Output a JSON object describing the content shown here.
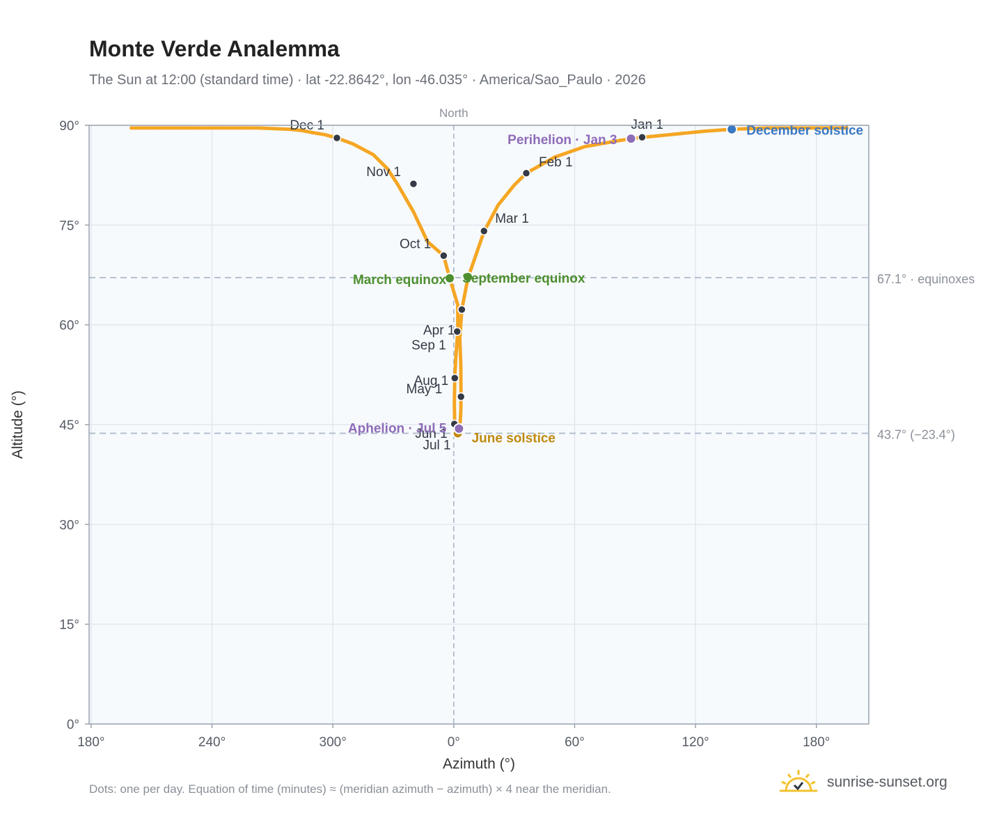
{
  "title": "Monte Verde Analemma",
  "subtitle": "The Sun at 12:00 (standard time) · lat -22.8642°, lon -46.035° · America/Sao_Paulo · 2026",
  "footnote": "Dots: one per day. Equation of time (minutes) ≈ (meridian azimuth − azimuth) × 4 near the meridian.",
  "brand": {
    "name": "sunrise-sunset.org",
    "icon": "sun-logo-icon"
  },
  "colors": {
    "path": "#f5a623",
    "month_marker": "#333a45",
    "equinox": "#4e8f2f",
    "june_solstice": "#c08a10",
    "december_solstice": "#3a78c3",
    "apsis": "#8e6cb8",
    "reference_line": "#aebccb",
    "plot_bg": "#f7fafd",
    "grid": "#e2e7ee"
  },
  "chart_data": {
    "type": "scatter",
    "title": "Monte Verde Analemma",
    "subtitle": "The Sun at 12:00 (standard time) · lat -22.8642°, lon -46.035° · America/Sao_Paulo · 2026",
    "xlabel": "Azimuth (°)",
    "ylabel": "Altitude (°)",
    "x_ticks": [
      "180°",
      "240°",
      "300°",
      "0°",
      "60°",
      "120°",
      "180°"
    ],
    "y_ticks": [
      "0°",
      "15°",
      "30°",
      "45°",
      "60°",
      "75°",
      "90°"
    ],
    "xlim": [
      -181,
      206
    ],
    "ylim": [
      0,
      90
    ],
    "north_label": "North",
    "grid": true,
    "reference_lines": [
      {
        "altitude": 67.1,
        "label": "67.1° · equinoxes"
      },
      {
        "altitude": 43.7,
        "label": "43.7° (−23.4°)"
      }
    ],
    "path_points": [
      [
        -160,
        89.6
      ],
      [
        -145,
        89.6
      ],
      [
        -130,
        89.6
      ],
      [
        -117,
        89.6
      ],
      [
        -106,
        89.6
      ],
      [
        -97,
        89.6
      ],
      [
        -89,
        89.5
      ],
      [
        -81,
        89.4
      ],
      [
        -75,
        89.2
      ],
      [
        -70,
        88.9
      ],
      [
        -64,
        88.6
      ],
      [
        -58,
        88.1
      ],
      [
        -50,
        87.2
      ],
      [
        -40,
        85.6
      ],
      [
        -33,
        83.5
      ],
      [
        -28,
        81.2
      ],
      [
        -20,
        77.0
      ],
      [
        -13,
        72.5
      ],
      [
        -5,
        70.4
      ],
      [
        -2,
        67.0
      ],
      [
        2,
        63.0
      ],
      [
        2,
        59.0
      ],
      [
        1,
        55.0
      ],
      [
        0.5,
        52.0
      ],
      [
        0.3,
        48.0
      ],
      [
        0.5,
        45.0
      ],
      [
        2,
        43.7
      ],
      [
        3,
        44.5
      ],
      [
        3.5,
        47.0
      ],
      [
        3.6,
        49.2
      ],
      [
        3.5,
        54.0
      ],
      [
        3,
        58.0
      ],
      [
        4,
        62.3
      ],
      [
        7,
        67.0
      ],
      [
        15,
        74.0
      ],
      [
        22,
        78.0
      ],
      [
        30,
        81.0
      ],
      [
        36,
        82.8
      ],
      [
        50,
        85.2
      ],
      [
        65,
        86.8
      ],
      [
        80,
        87.6
      ],
      [
        88,
        88.0
      ],
      [
        94,
        88.2
      ],
      [
        104,
        88.5
      ],
      [
        114,
        88.8
      ],
      [
        124,
        89.1
      ],
      [
        133,
        89.3
      ],
      [
        138,
        89.4
      ],
      [
        146,
        89.5
      ],
      [
        156,
        89.6
      ],
      [
        166,
        89.6
      ],
      [
        176,
        89.6
      ],
      [
        186,
        89.6
      ],
      [
        196,
        89.6
      ]
    ],
    "month_markers": [
      {
        "label": "Jan 1",
        "az": 93.5,
        "alt": 88.2
      },
      {
        "label": "Feb 1",
        "az": 36,
        "alt": 82.8
      },
      {
        "label": "Mar 1",
        "az": 15,
        "alt": 74.1
      },
      {
        "label": "Apr 1",
        "az": 4,
        "alt": 62.3
      },
      {
        "label": "May 1",
        "az": 0.5,
        "alt": 52.0
      },
      {
        "label": "Jun 1",
        "az": 0.3,
        "alt": 45.1
      },
      {
        "label": "Jul 1",
        "az": 2,
        "alt": 43.8
      },
      {
        "label": "Aug 1",
        "az": 3.6,
        "alt": 49.2
      },
      {
        "label": "Sep 1",
        "az": 1.7,
        "alt": 59.0
      },
      {
        "label": "Oct 1",
        "az": -5,
        "alt": 70.4
      },
      {
        "label": "Nov 1",
        "az": -20,
        "alt": 81.2
      },
      {
        "label": "Dec 1",
        "az": -58,
        "alt": 88.1
      }
    ],
    "events": [
      {
        "label": "March equinox",
        "az": -2,
        "alt": 67.0,
        "color": "#4e8f2f"
      },
      {
        "label": "September equinox",
        "az": 7,
        "alt": 67.2,
        "color": "#4e8f2f"
      },
      {
        "label": "June solstice",
        "az": 2,
        "alt": 43.7,
        "color": "#c08a10"
      },
      {
        "label": "December solstice",
        "az": 138,
        "alt": 89.4,
        "color": "#3a78c3"
      },
      {
        "label": "Perihelion · Jan 3",
        "az": 88,
        "alt": 88.0,
        "color": "#8e6cb8"
      },
      {
        "label": "Aphelion · Jul 5",
        "az": 2.6,
        "alt": 44.4,
        "color": "#8e6cb8"
      }
    ]
  }
}
